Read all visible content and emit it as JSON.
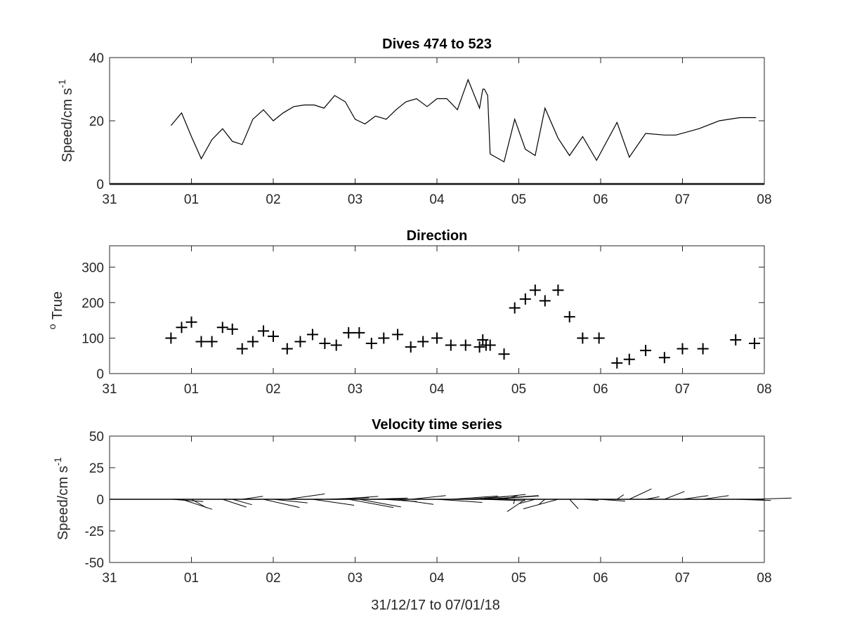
{
  "chart_data": [
    {
      "type": "line",
      "title": "Dives 474 to 523",
      "ylabel": "Speed/cm s",
      "ylabel_sup": "-1",
      "xlim": [
        0,
        8
      ],
      "ylim": [
        0,
        40
      ],
      "xtick_labels": [
        "31",
        "01",
        "02",
        "03",
        "04",
        "05",
        "06",
        "07",
        "08"
      ],
      "yticks": [
        0,
        20,
        40
      ],
      "x": [
        0.75,
        0.88,
        1.0,
        1.12,
        1.25,
        1.38,
        1.5,
        1.62,
        1.75,
        1.88,
        2.0,
        2.12,
        2.25,
        2.38,
        2.5,
        2.62,
        2.75,
        2.88,
        3.0,
        3.12,
        3.25,
        3.38,
        3.5,
        3.62,
        3.75,
        3.88,
        4.0,
        4.12,
        4.25,
        4.38,
        4.52,
        4.56,
        4.58,
        4.62,
        4.65,
        4.82,
        4.95,
        5.08,
        5.2,
        5.32,
        5.48,
        5.62,
        5.78,
        5.95,
        6.2,
        6.35,
        6.55,
        6.78,
        6.92,
        7.2,
        7.45,
        7.7,
        7.9
      ],
      "y": [
        18.5,
        22.5,
        15,
        8,
        14,
        17.5,
        13.5,
        12.5,
        20.5,
        23.5,
        20,
        22.5,
        24.5,
        25,
        25,
        24,
        28,
        26,
        20.5,
        19,
        21.5,
        20.5,
        23.5,
        26,
        27,
        24.5,
        27,
        27,
        23.5,
        33,
        24,
        30,
        30,
        28,
        9.5,
        7,
        20.5,
        11,
        9,
        24,
        14.5,
        9,
        15,
        7.5,
        19.5,
        8.5,
        16,
        15.5,
        15.5,
        17.5,
        20,
        21,
        21
      ]
    },
    {
      "type": "scatter",
      "title": "Direction",
      "ylabel": "True",
      "ylabel_sup": "o",
      "xlim": [
        0,
        8
      ],
      "ylim": [
        0,
        360
      ],
      "xtick_labels": [
        "31",
        "01",
        "02",
        "03",
        "04",
        "05",
        "06",
        "07",
        "08"
      ],
      "yticks": [
        0,
        100,
        200,
        300
      ],
      "marker": "+",
      "x": [
        0.75,
        0.88,
        1.0,
        1.12,
        1.25,
        1.38,
        1.5,
        1.62,
        1.75,
        1.88,
        2.0,
        2.17,
        2.33,
        2.48,
        2.63,
        2.77,
        2.92,
        3.05,
        3.2,
        3.35,
        3.52,
        3.68,
        3.83,
        4.0,
        4.17,
        4.35,
        4.52,
        4.56,
        4.6,
        4.65,
        4.82,
        4.95,
        5.08,
        5.2,
        5.32,
        5.48,
        5.62,
        5.78,
        5.98,
        6.2,
        6.35,
        6.55,
        6.78,
        7.0,
        7.25,
        7.65,
        7.88
      ],
      "y": [
        100,
        130,
        145,
        90,
        90,
        130,
        125,
        70,
        90,
        120,
        105,
        70,
        90,
        110,
        85,
        80,
        115,
        115,
        85,
        100,
        110,
        75,
        90,
        100,
        80,
        80,
        75,
        95,
        80,
        80,
        55,
        185,
        210,
        235,
        205,
        235,
        160,
        100,
        100,
        30,
        40,
        65,
        45,
        70,
        70,
        95,
        85
      ]
    },
    {
      "type": "line",
      "subtype": "quiver",
      "title": "Velocity time series",
      "ylabel": "Speed/cm s",
      "ylabel_sup": "-1",
      "xlabel": "31/12/17 to 07/01/18",
      "xlim": [
        0,
        8
      ],
      "ylim": [
        -50,
        50
      ],
      "xtick_labels": [
        "31",
        "01",
        "02",
        "03",
        "04",
        "05",
        "06",
        "07",
        "08"
      ],
      "yticks": [
        -50,
        -25,
        0,
        25,
        50
      ],
      "x": [
        0.75,
        0.88,
        1.0,
        1.12,
        1.25,
        1.38,
        1.5,
        1.62,
        1.75,
        1.88,
        2.0,
        2.17,
        2.33,
        2.48,
        2.63,
        2.77,
        2.92,
        3.05,
        3.2,
        3.35,
        3.52,
        3.68,
        3.83,
        4.0,
        4.17,
        4.35,
        4.52,
        4.56,
        4.6,
        4.65,
        4.82,
        4.95,
        5.08,
        5.2,
        5.32,
        5.48,
        5.62,
        5.78,
        5.98,
        6.2,
        6.35,
        6.55,
        6.78,
        7.0,
        7.25,
        7.65,
        7.88
      ],
      "speed": [
        18.5,
        22.5,
        15,
        8,
        14,
        17.5,
        13.5,
        12.5,
        20.5,
        23.5,
        20,
        22.5,
        24.5,
        25,
        25,
        24,
        28,
        26,
        20.5,
        19,
        21.5,
        20.5,
        23.5,
        26,
        27,
        24.5,
        27,
        24,
        30,
        28,
        9.5,
        7,
        20.5,
        11,
        9,
        24,
        14.5,
        9,
        15,
        7.5,
        19.5,
        8.5,
        16,
        15.5,
        15.5,
        20,
        21
      ],
      "direction": [
        100,
        130,
        145,
        90,
        90,
        130,
        125,
        70,
        90,
        120,
        105,
        70,
        90,
        110,
        85,
        80,
        115,
        115,
        85,
        100,
        110,
        75,
        90,
        100,
        80,
        80,
        75,
        95,
        80,
        80,
        55,
        185,
        210,
        235,
        205,
        235,
        160,
        100,
        100,
        30,
        40,
        65,
        45,
        70,
        70,
        95,
        85
      ]
    }
  ]
}
